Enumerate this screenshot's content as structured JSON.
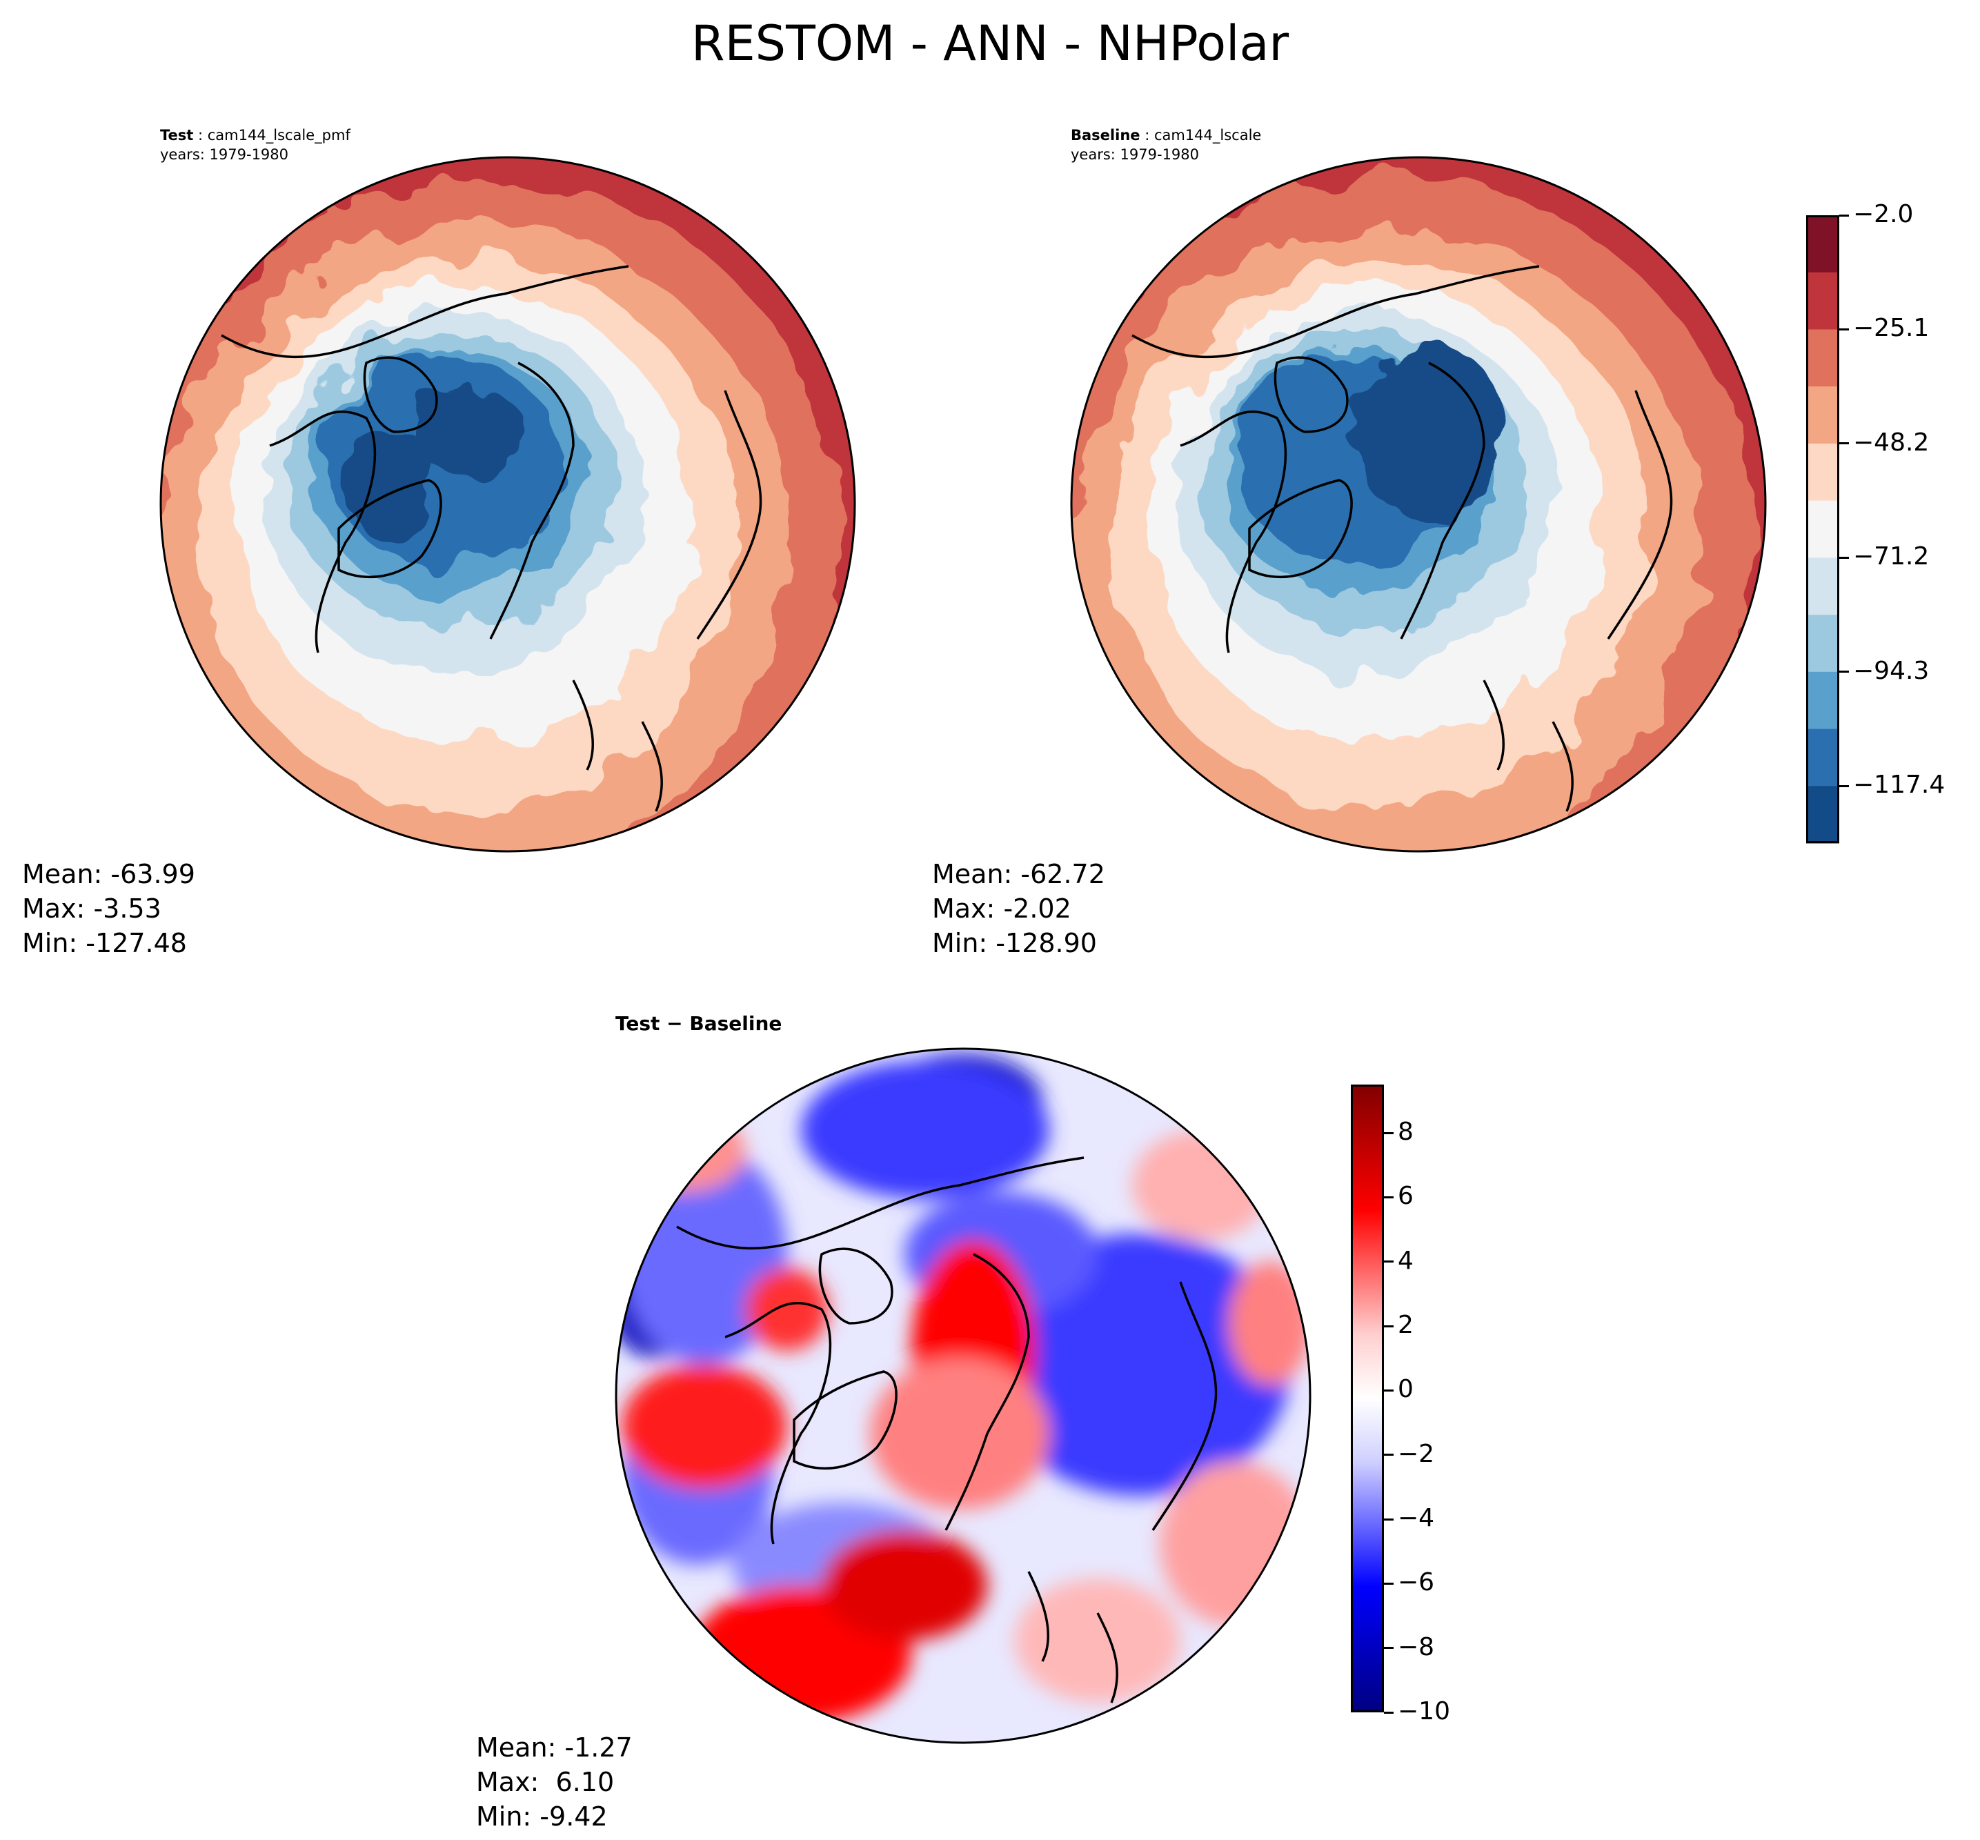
{
  "figure": {
    "title": "RESTOM - ANN - NHPolar"
  },
  "panels": {
    "test": {
      "label": "Test",
      "case": "cam144_lscale_pmf",
      "years": "years: 1979-1980",
      "stats": {
        "mean": "Mean: -63.99",
        "max": "Max: -3.53",
        "min": "Min: -127.48"
      }
    },
    "baseline": {
      "label": "Baseline",
      "case": "cam144_lscale",
      "years": "years: 1979-1980",
      "stats": {
        "mean": "Mean: -62.72",
        "max": "Max: -2.02",
        "min": "Min: -128.90"
      }
    },
    "diff": {
      "label": "Test − Baseline",
      "stats": {
        "mean": "Mean: -1.27",
        "max": "Max:  6.10",
        "min": "Min: -9.42"
      }
    }
  },
  "colorbars": {
    "main": {
      "ticks": [
        "−2.0",
        "−25.1",
        "−48.2",
        "−71.2",
        "−94.3",
        "−117.4"
      ],
      "colors": [
        "#7f1226",
        "#c0343b",
        "#e0715d",
        "#f3a684",
        "#fdd9c4",
        "#f5f5f5",
        "#d3e4ef",
        "#9dc9e0",
        "#5aa0cd",
        "#2b6fb0",
        "#124b87"
      ]
    },
    "diff": {
      "ticks": [
        "8",
        "6",
        "4",
        "2",
        "0",
        "−2",
        "−4",
        "−6",
        "−8",
        "−10"
      ],
      "colors": [
        "#800000",
        "#c00000",
        "#ff0000",
        "#ff6a6a",
        "#ffd0d0",
        "#ffffff",
        "#d0d0ff",
        "#6a6aff",
        "#0000ff",
        "#0000c0",
        "#000080"
      ]
    }
  },
  "chart_data": [
    {
      "type": "heatmap",
      "title": "Test: cam144_lscale_pmf, years: 1979-1980",
      "projection": "North polar stereographic",
      "variable": "RESTOM",
      "stats": {
        "mean": -63.99,
        "max": -3.53,
        "min": -127.48
      }
    },
    {
      "type": "heatmap",
      "title": "Baseline: cam144_lscale, years: 1979-1980",
      "projection": "North polar stereographic",
      "variable": "RESTOM",
      "stats": {
        "mean": -62.72,
        "max": -2.02,
        "min": -128.9
      },
      "colorbar": {
        "levels": [
          -2.0,
          -25.1,
          -48.2,
          -71.2,
          -94.3,
          -117.4
        ]
      }
    },
    {
      "type": "heatmap",
      "title": "Test − Baseline",
      "projection": "North polar stereographic",
      "stats": {
        "mean": -1.27,
        "max": 6.1,
        "min": -9.42
      },
      "colorbar": {
        "range": [
          -10,
          9.5
        ],
        "ticks": [
          8,
          6,
          4,
          2,
          0,
          -2,
          -4,
          -6,
          -8,
          -10
        ]
      }
    }
  ]
}
